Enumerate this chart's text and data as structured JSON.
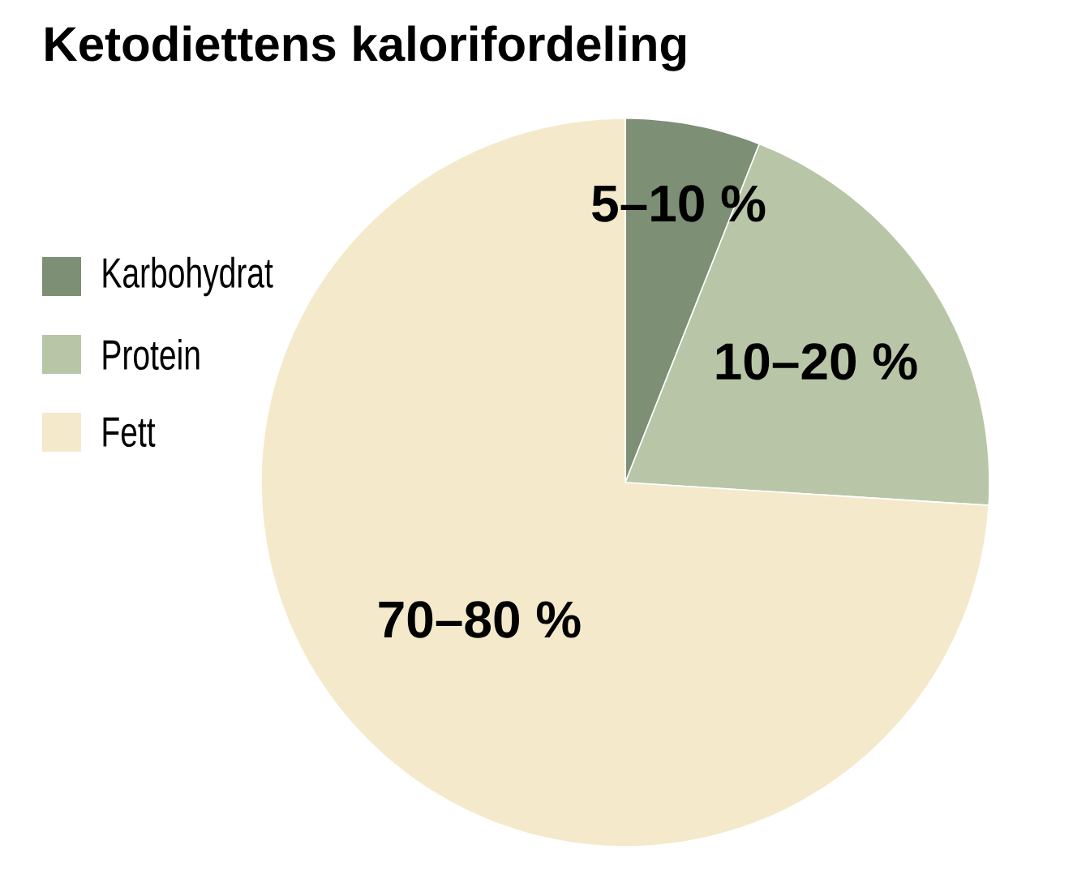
{
  "chart_data": {
    "type": "pie",
    "title": "Ketodiettens kalorifordeling",
    "categories": [
      "Karbohydrat",
      "Protein",
      "Fett"
    ],
    "values": [
      6,
      20,
      74
    ],
    "colors": [
      "#7d8f74",
      "#b8c6a7",
      "#f4e9cb"
    ],
    "annotations": [
      "5–10 %",
      "10–20 %",
      "70–80 %"
    ],
    "legend": "left"
  }
}
